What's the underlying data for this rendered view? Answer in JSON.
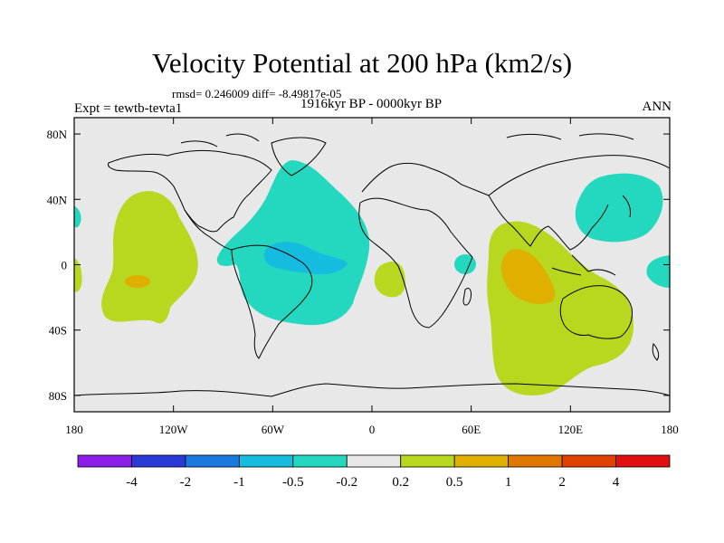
{
  "title": "Velocity Potential at 200 hPa (km2/s)",
  "stats_text": "rmsd= 0.246009 diff= -8.49817e-05",
  "subtitle": "1916kyr BP - 0000kyr BP",
  "experiment_label": "Expt = tewtb-tevta1",
  "season_label": "ANN",
  "chart_data": {
    "type": "heatmap",
    "title": "Velocity Potential at 200 hPa (km2/s)",
    "projection": "cylindrical-equidistant",
    "xlabel": "",
    "ylabel": "",
    "lon_range": [
      -180,
      180
    ],
    "lat_range": [
      -90,
      90
    ],
    "x_ticks": [
      {
        "value": -180,
        "label": "180"
      },
      {
        "value": -120,
        "label": "120W"
      },
      {
        "value": -60,
        "label": "60W"
      },
      {
        "value": 0,
        "label": "0"
      },
      {
        "value": 60,
        "label": "60E"
      },
      {
        "value": 120,
        "label": "120E"
      },
      {
        "value": 180,
        "label": "180"
      }
    ],
    "y_ticks": [
      {
        "value": 80,
        "label": "80N"
      },
      {
        "value": 40,
        "label": "40N"
      },
      {
        "value": 0,
        "label": "0"
      },
      {
        "value": -40,
        "label": "40S"
      },
      {
        "value": -80,
        "label": "80S"
      }
    ],
    "colorbar": {
      "levels": [
        "-4",
        "-2",
        "-1",
        "-0.5",
        "-0.2",
        "0.2",
        "0.5",
        "1",
        "2",
        "4"
      ],
      "colors": [
        "#8a1ee6",
        "#2a3ad6",
        "#1a78e0",
        "#16bce0",
        "#24d8c0",
        "#e8e8e8",
        "#b8d820",
        "#e0b000",
        "#e07800",
        "#e04000",
        "#e01010"
      ]
    },
    "regions": [
      {
        "name": "atlantic-negative",
        "level_range": "-0.5 to -0.2",
        "lon_center": -52,
        "lat_center": 10
      },
      {
        "name": "amazon-negative-core",
        "level_range": "-1 to -0.5",
        "lon_center": -50,
        "lat_center": 0
      },
      {
        "name": "west-pacific-north-negative",
        "level_range": "-0.5 to -0.2",
        "lon_center": 148,
        "lat_center": 38
      },
      {
        "name": "east-africa-negative",
        "level_range": "-0.5 to -0.2",
        "lon_center": 40,
        "lat_center": 0
      },
      {
        "name": "east-pacific-positive",
        "level_range": "0.2 to 0.5",
        "lon_center": -138,
        "lat_center": 0
      },
      {
        "name": "east-pacific-positive-core",
        "level_range": "0.5 to 1",
        "lon_center": -143,
        "lat_center": -8
      },
      {
        "name": "indian-ocean-positive",
        "level_range": "0.2 to 0.5",
        "lon_center": 95,
        "lat_center": -15
      },
      {
        "name": "indian-ocean-positive-core",
        "level_range": "0.5 to 1",
        "lon_center": 90,
        "lat_center": -8
      },
      {
        "name": "south-atlantic-positive",
        "level_range": "0.2 to 0.5",
        "lon_center": 10,
        "lat_center": -8
      }
    ]
  }
}
